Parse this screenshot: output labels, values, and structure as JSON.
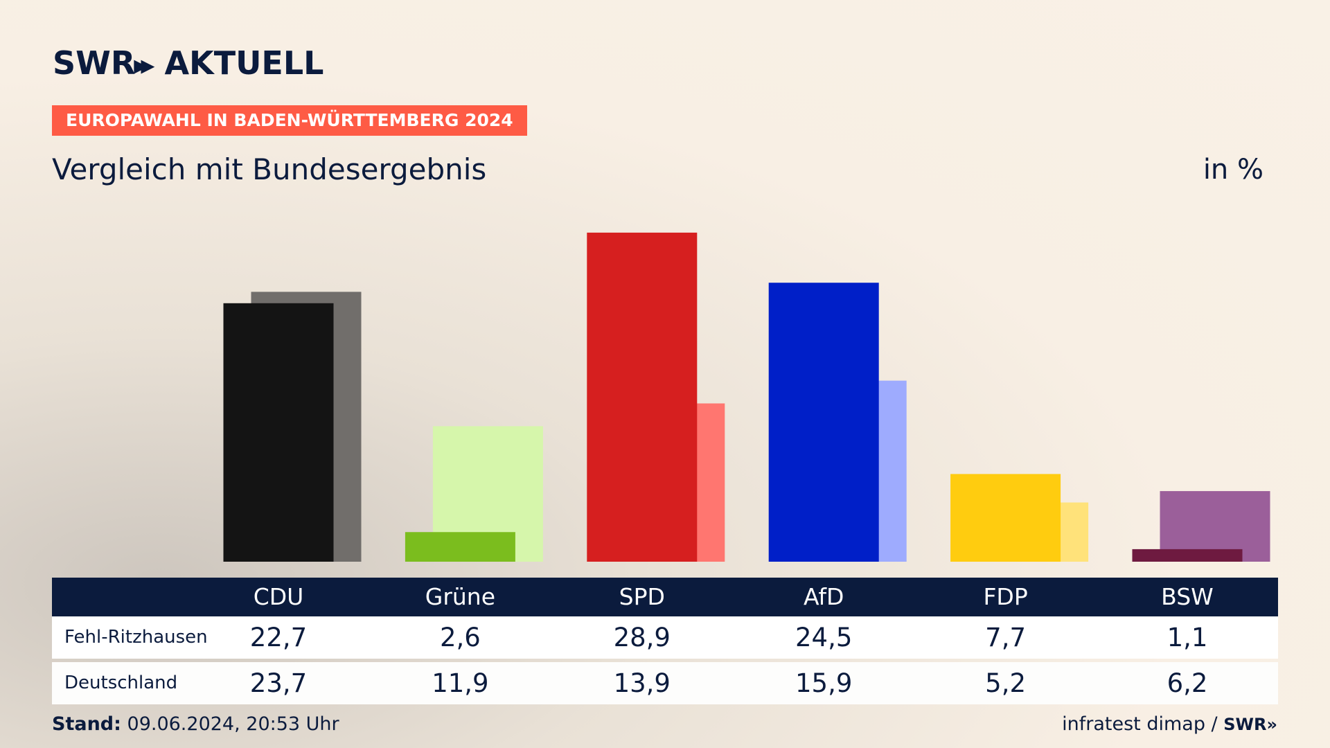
{
  "brand": {
    "left": "SWR",
    "chevrons": "»",
    "right": "AKTUELL"
  },
  "tag": "EUROPAWAHL IN BADEN-WÜRTTEMBERG 2024",
  "subtitle": "Vergleich mit Bundesergebnis",
  "unit": "in %",
  "footer": {
    "stand_label": "Stand:",
    "stand_value": "09.06.2024, 20:53 Uhr",
    "source": "infratest dimap /",
    "source_logo": "SWR»"
  },
  "chart_data": {
    "type": "bar",
    "categories": [
      "CDU",
      "Grüne",
      "SPD",
      "AfD",
      "FDP",
      "BSW"
    ],
    "series": [
      {
        "name": "Fehl-Ritzhausen",
        "values": [
          22.7,
          2.6,
          28.9,
          24.5,
          7.7,
          1.1
        ]
      },
      {
        "name": "Deutschland",
        "values": [
          23.7,
          11.9,
          13.9,
          15.9,
          5.2,
          6.2
        ]
      }
    ],
    "display_values": [
      [
        "22,7",
        "2,6",
        "28,9",
        "24,5",
        "7,7",
        "1,1"
      ],
      [
        "23,7",
        "11,9",
        "13,9",
        "15,9",
        "5,2",
        "6,2"
      ]
    ],
    "colors": {
      "primary": [
        "#141414",
        "#7bbd1e",
        "#d61f1f",
        "#001fc8",
        "#ffcc0f",
        "#6e1a40"
      ],
      "secondary": [
        "#716e6b",
        "#d6f6ab",
        "#ff7670",
        "#9eabfe",
        "#ffe27a",
        "#9b5f9a"
      ]
    },
    "ylim": [
      0,
      30
    ],
    "grid": false,
    "legend": "table-below"
  }
}
